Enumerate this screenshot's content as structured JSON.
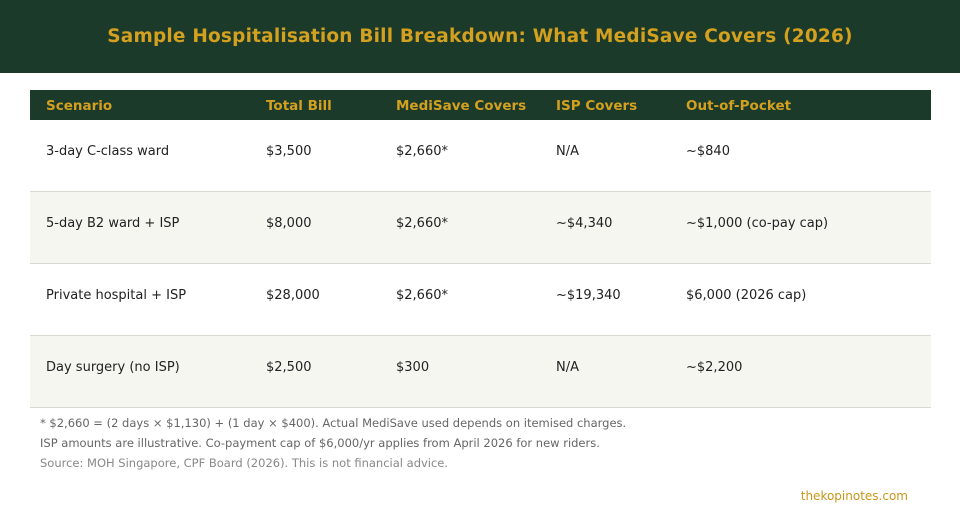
{
  "header": {
    "title": "Sample Hospitalisation Bill Breakdown: What MediSave Covers (2026)"
  },
  "table": {
    "columns": [
      "Scenario",
      "Total Bill",
      "MediSave Covers",
      "ISP Covers",
      "Out-of-Pocket"
    ],
    "rows": [
      [
        "3-day C-class ward",
        "$3,500",
        "$2,660*",
        "N/A",
        "~$840"
      ],
      [
        "5-day B2 ward + ISP",
        "$8,000",
        "$2,660*",
        "~$4,340",
        "~$1,000 (co-pay cap)"
      ],
      [
        "Private hospital + ISP",
        "$28,000",
        "$2,660*",
        "~$19,340",
        "$6,000 (2026 cap)"
      ],
      [
        "Day surgery (no ISP)",
        "$2,500",
        "$300",
        "N/A",
        "~$2,200"
      ]
    ]
  },
  "notes": {
    "footnote": "* $2,660 = (2 days × $1,130) + (1 day × $400). Actual MediSave used depends on itemised charges.",
    "illustrative": "ISP amounts are illustrative. Co-payment cap of $6,000/yr applies from April 2026 for new riders.",
    "source": "Source: MOH Singapore, CPF Board (2026). This is not financial advice."
  },
  "footer": {
    "site": "thekopinotes.com"
  },
  "colors": {
    "header_bg": "#1b3a2a",
    "accent_gold": "#d4a020",
    "alt_row_bg": "#f6f6f1"
  }
}
